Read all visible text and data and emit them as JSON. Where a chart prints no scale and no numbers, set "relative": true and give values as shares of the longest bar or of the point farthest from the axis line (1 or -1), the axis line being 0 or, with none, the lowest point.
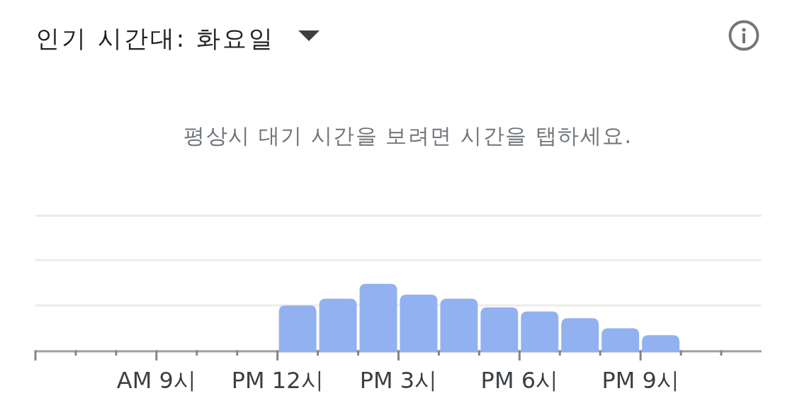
{
  "chart_data": {
    "type": "bar",
    "title": "인기 시간대: 화요일",
    "subtitle": "평상시 대기 시간을 보려면 시간을 탭하세요.",
    "categories": [
      null,
      null,
      null,
      "AM 9시",
      null,
      null,
      "PM 12시",
      null,
      null,
      "PM 3시",
      null,
      null,
      "PM 6시",
      null,
      null,
      "PM 9시",
      null,
      null
    ],
    "values": [
      0,
      0,
      0,
      0,
      0,
      0,
      0.68,
      0.78,
      1,
      0.84,
      0.78,
      0.65,
      0.59,
      0.49,
      0.34,
      0.24,
      0,
      0
    ],
    "color": "#92b1f0",
    "relative": true,
    "ref_lines": [
      {
        "axis": "y",
        "value": 0.68,
        "color": "#ececec"
      },
      {
        "axis": "y",
        "value": 1.35,
        "color": "#ececec"
      },
      {
        "axis": "y",
        "value": 2.01,
        "color": "#ececec"
      }
    ]
  }
}
